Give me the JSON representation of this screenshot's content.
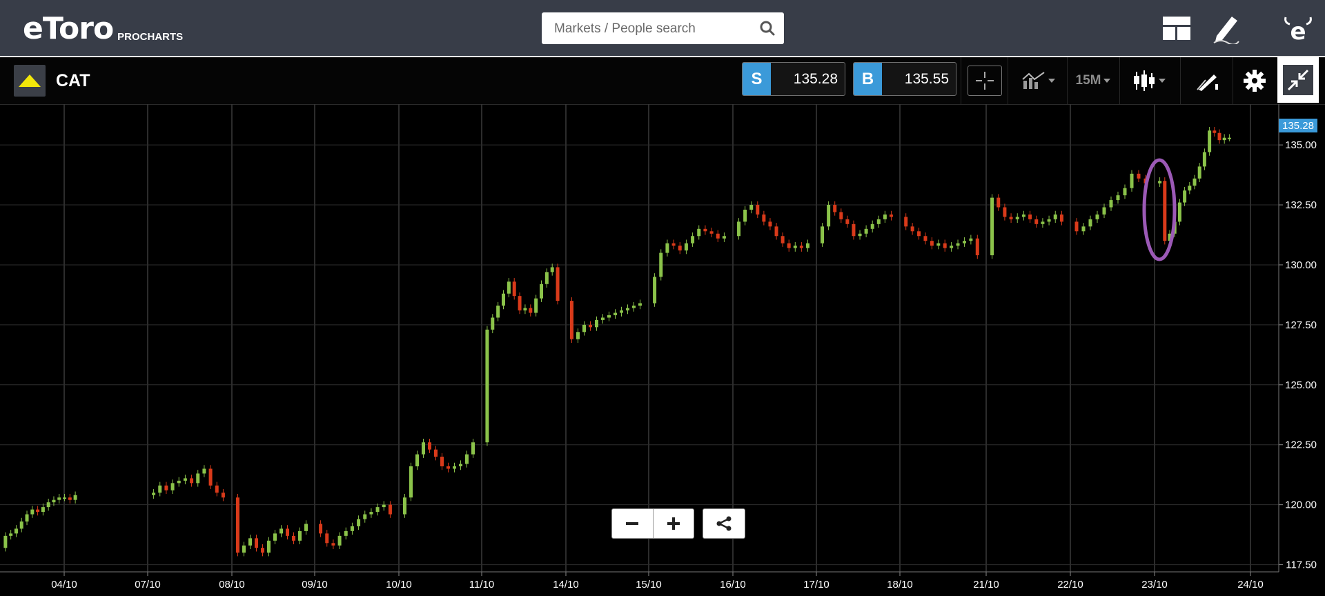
{
  "header": {
    "logo_text": "eToro",
    "logo_sub": "PROCHARTS",
    "search_placeholder": "Markets / People search"
  },
  "toolbar": {
    "instrument": "CAT",
    "sell_letter": "S",
    "sell_price": "135.28",
    "buy_letter": "B",
    "buy_price": "135.55",
    "timeframe": "15M"
  },
  "colors": {
    "up": "#8bc34a",
    "down": "#d93a1a",
    "accent": "#3b9ad9",
    "highlight": "#9b59b6"
  },
  "chart_data": {
    "type": "candlestick",
    "title": "",
    "xlabel": "",
    "ylabel": "",
    "x_ticks": [
      "04/10",
      "07/10",
      "08/10",
      "09/10",
      "10/10",
      "11/10",
      "14/10",
      "15/10",
      "16/10",
      "17/10",
      "18/10",
      "21/10",
      "22/10",
      "23/10",
      "24/10"
    ],
    "y_ticks": [
      "117.50",
      "120.00",
      "122.50",
      "125.00",
      "127.50",
      "130.00",
      "132.50",
      "135.00"
    ],
    "ylim": [
      117.2,
      136.7
    ],
    "last_price_label": "135.28",
    "grid": true,
    "highlight_note": "ellipse around 23/10 dip",
    "close_series": [
      {
        "day": "04/10",
        "closes": [
          118.7,
          118.8,
          119.0,
          119.3,
          119.6,
          119.8,
          119.7,
          119.9,
          120.1,
          120.2,
          120.3,
          120.3,
          120.2,
          120.4
        ]
      },
      {
        "day": "07/10",
        "closes": [
          120.5,
          120.8,
          120.6,
          120.9,
          121.0,
          121.1,
          120.9,
          121.3,
          121.5,
          120.8,
          120.5,
          120.3
        ]
      },
      {
        "day": "08/10",
        "closes": [
          118.0,
          118.3,
          118.6,
          118.2,
          118.0,
          118.5,
          118.8,
          119.0,
          118.7,
          118.5,
          118.9,
          119.2
        ]
      },
      {
        "day": "09/10",
        "closes": [
          118.8,
          118.4,
          118.3,
          118.7,
          118.9,
          119.1,
          119.4,
          119.6,
          119.7,
          119.9,
          120.0,
          119.6
        ]
      },
      {
        "day": "10/10",
        "closes": [
          120.3,
          121.6,
          122.1,
          122.6,
          122.3,
          122.0,
          121.6,
          121.5,
          121.6,
          121.7,
          122.1,
          122.6
        ]
      },
      {
        "day": "11/10",
        "closes": [
          127.3,
          127.8,
          128.3,
          128.8,
          129.3,
          128.7,
          128.1,
          128.2,
          128.0,
          128.6,
          129.2,
          129.7,
          129.9,
          128.5
        ]
      },
      {
        "day": "14/10",
        "closes": [
          126.9,
          127.2,
          127.5,
          127.4,
          127.7,
          127.8,
          127.9,
          128.0,
          128.1,
          128.2,
          128.3,
          128.4
        ]
      },
      {
        "day": "15/10",
        "closes": [
          129.5,
          130.5,
          130.9,
          130.8,
          130.6,
          130.9,
          131.2,
          131.5,
          131.4,
          131.3,
          131.1,
          131.2
        ]
      },
      {
        "day": "16/10",
        "closes": [
          131.8,
          132.3,
          132.5,
          132.1,
          131.8,
          131.6,
          131.2,
          130.9,
          130.7,
          130.8,
          130.7,
          130.9
        ]
      },
      {
        "day": "17/10",
        "closes": [
          131.6,
          132.5,
          132.2,
          131.9,
          131.7,
          131.2,
          131.3,
          131.5,
          131.7,
          131.9,
          132.1,
          132.0
        ]
      },
      {
        "day": "18/10",
        "closes": [
          131.6,
          131.4,
          131.2,
          131.0,
          130.8,
          130.9,
          130.7,
          130.8,
          130.9,
          131.0,
          131.1,
          130.4
        ]
      },
      {
        "day": "21/10",
        "closes": [
          132.8,
          132.4,
          132.0,
          131.9,
          132.0,
          132.1,
          131.9,
          131.7,
          131.8,
          131.9,
          132.1,
          131.8
        ]
      },
      {
        "day": "22/10",
        "closes": [
          131.4,
          131.6,
          131.9,
          132.1,
          132.4,
          132.7,
          132.9,
          133.2,
          133.8,
          133.6,
          133.4
        ]
      },
      {
        "day": "23/10",
        "closes": [
          133.5,
          131.0,
          131.3,
          131.8,
          132.6,
          133.1,
          133.3,
          133.6,
          134.1,
          134.7,
          135.6,
          135.5,
          135.2,
          135.3,
          135.3
        ]
      }
    ]
  }
}
